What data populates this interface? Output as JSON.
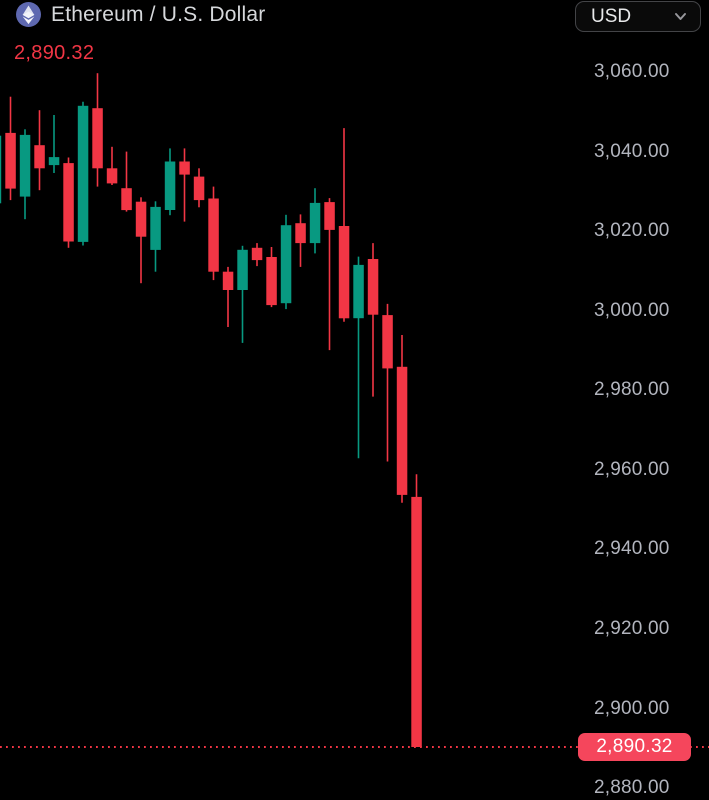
{
  "header": {
    "symbol_title": "Ethereum / U.S. Dollar",
    "symbol_icon": "ethereum-icon",
    "last_price": "2,890.32",
    "currency_selector": {
      "value": "USD",
      "chevron_icon": "chevron-down-icon"
    }
  },
  "price_axis": {
    "labels": [
      {
        "text": "3,060.00",
        "value": 3060
      },
      {
        "text": "3,040.00",
        "value": 3040
      },
      {
        "text": "3,020.00",
        "value": 3020
      },
      {
        "text": "3,000.00",
        "value": 3000
      },
      {
        "text": "2,980.00",
        "value": 2980
      },
      {
        "text": "2,960.00",
        "value": 2960
      },
      {
        "text": "2,940.00",
        "value": 2940
      },
      {
        "text": "2,920.00",
        "value": 2920
      },
      {
        "text": "2,900.00",
        "value": 2900
      },
      {
        "text": "2,880.00",
        "value": 2880
      }
    ]
  },
  "price_line": {
    "value": 2890.32,
    "label": "2,890.32",
    "style": "dotted"
  },
  "colors": {
    "background": "#000000",
    "up": "#089981",
    "down": "#f23645",
    "badge_bg": "#f5465c",
    "badge_text": "#ffffff",
    "axis_text": "#b2b5be",
    "title_text": "#d6d8db",
    "header_price_text": "#f23645",
    "selector_border": "#434447",
    "selector_text": "#e8e9ea",
    "eth_icon_bg": "#5e68b0"
  },
  "chart_data": {
    "type": "candlestick",
    "title": "Ethereum / U.S. Dollar",
    "pair": "ETH/USD",
    "quote_currency": "USD",
    "last_price": 2890.32,
    "grid": false,
    "legend_position": "none",
    "ylim": [
      2877.0,
      3078.1
    ],
    "y_axis_ticks": [
      3060,
      3040,
      3020,
      3000,
      2980,
      2960,
      2940,
      2920,
      2900,
      2880
    ],
    "candles_format": "ohlc",
    "candles": [
      [
        3027.0,
        3045.0,
        3026.0,
        3044.0
      ],
      [
        3044.7,
        3053.8,
        3027.8,
        3030.7
      ],
      [
        3028.7,
        3045.6,
        3023.0,
        3044.2
      ],
      [
        3041.6,
        3050.4,
        3030.3,
        3035.8
      ],
      [
        3036.6,
        3049.2,
        3034.6,
        3038.6
      ],
      [
        3037.1,
        3038.5,
        3015.8,
        3017.4
      ],
      [
        3017.3,
        3052.5,
        3016.4,
        3051.5
      ],
      [
        3050.9,
        3059.7,
        3031.2,
        3035.8
      ],
      [
        3035.8,
        3041.2,
        3031.6,
        3032.0
      ],
      [
        3030.8,
        3040.0,
        3024.9,
        3025.3
      ],
      [
        3027.4,
        3028.5,
        3006.9,
        3018.6
      ],
      [
        3015.3,
        3027.5,
        3009.8,
        3026.1
      ],
      [
        3025.3,
        3040.8,
        3024.0,
        3037.5
      ],
      [
        3037.5,
        3040.8,
        3022.4,
        3034.2
      ],
      [
        3033.7,
        3035.8,
        3026.0,
        3027.8
      ],
      [
        3028.2,
        3031.2,
        3007.7,
        3009.8
      ],
      [
        3009.8,
        3011.0,
        2995.9,
        3005.2
      ],
      [
        3005.2,
        3016.3,
        2991.9,
        3015.3
      ],
      [
        3015.8,
        3017.0,
        3011.2,
        3012.7
      ],
      [
        3013.5,
        3016.0,
        3000.9,
        3001.4
      ],
      [
        3001.9,
        3024.1,
        3000.4,
        3021.5
      ],
      [
        3022.0,
        3024.2,
        3011.0,
        3017.0
      ],
      [
        3017.0,
        3030.8,
        3014.4,
        3027.1
      ],
      [
        3027.3,
        3028.3,
        2990.1,
        3020.3
      ],
      [
        3021.3,
        3045.9,
        2997.2,
        2998.1
      ],
      [
        2998.1,
        3013.6,
        2962.9,
        3011.5
      ],
      [
        3013.0,
        3017.0,
        2978.4,
        2999.0
      ],
      [
        2998.9,
        3001.7,
        2962.1,
        2985.5
      ],
      [
        2985.9,
        2993.9,
        2951.7,
        2953.7
      ],
      [
        2953.2,
        2958.9,
        2890.32,
        2890.32
      ]
    ],
    "layout": {
      "x0": -4,
      "dx": 14.5,
      "body_w": 10.5,
      "wick_w": 1.6
    }
  }
}
